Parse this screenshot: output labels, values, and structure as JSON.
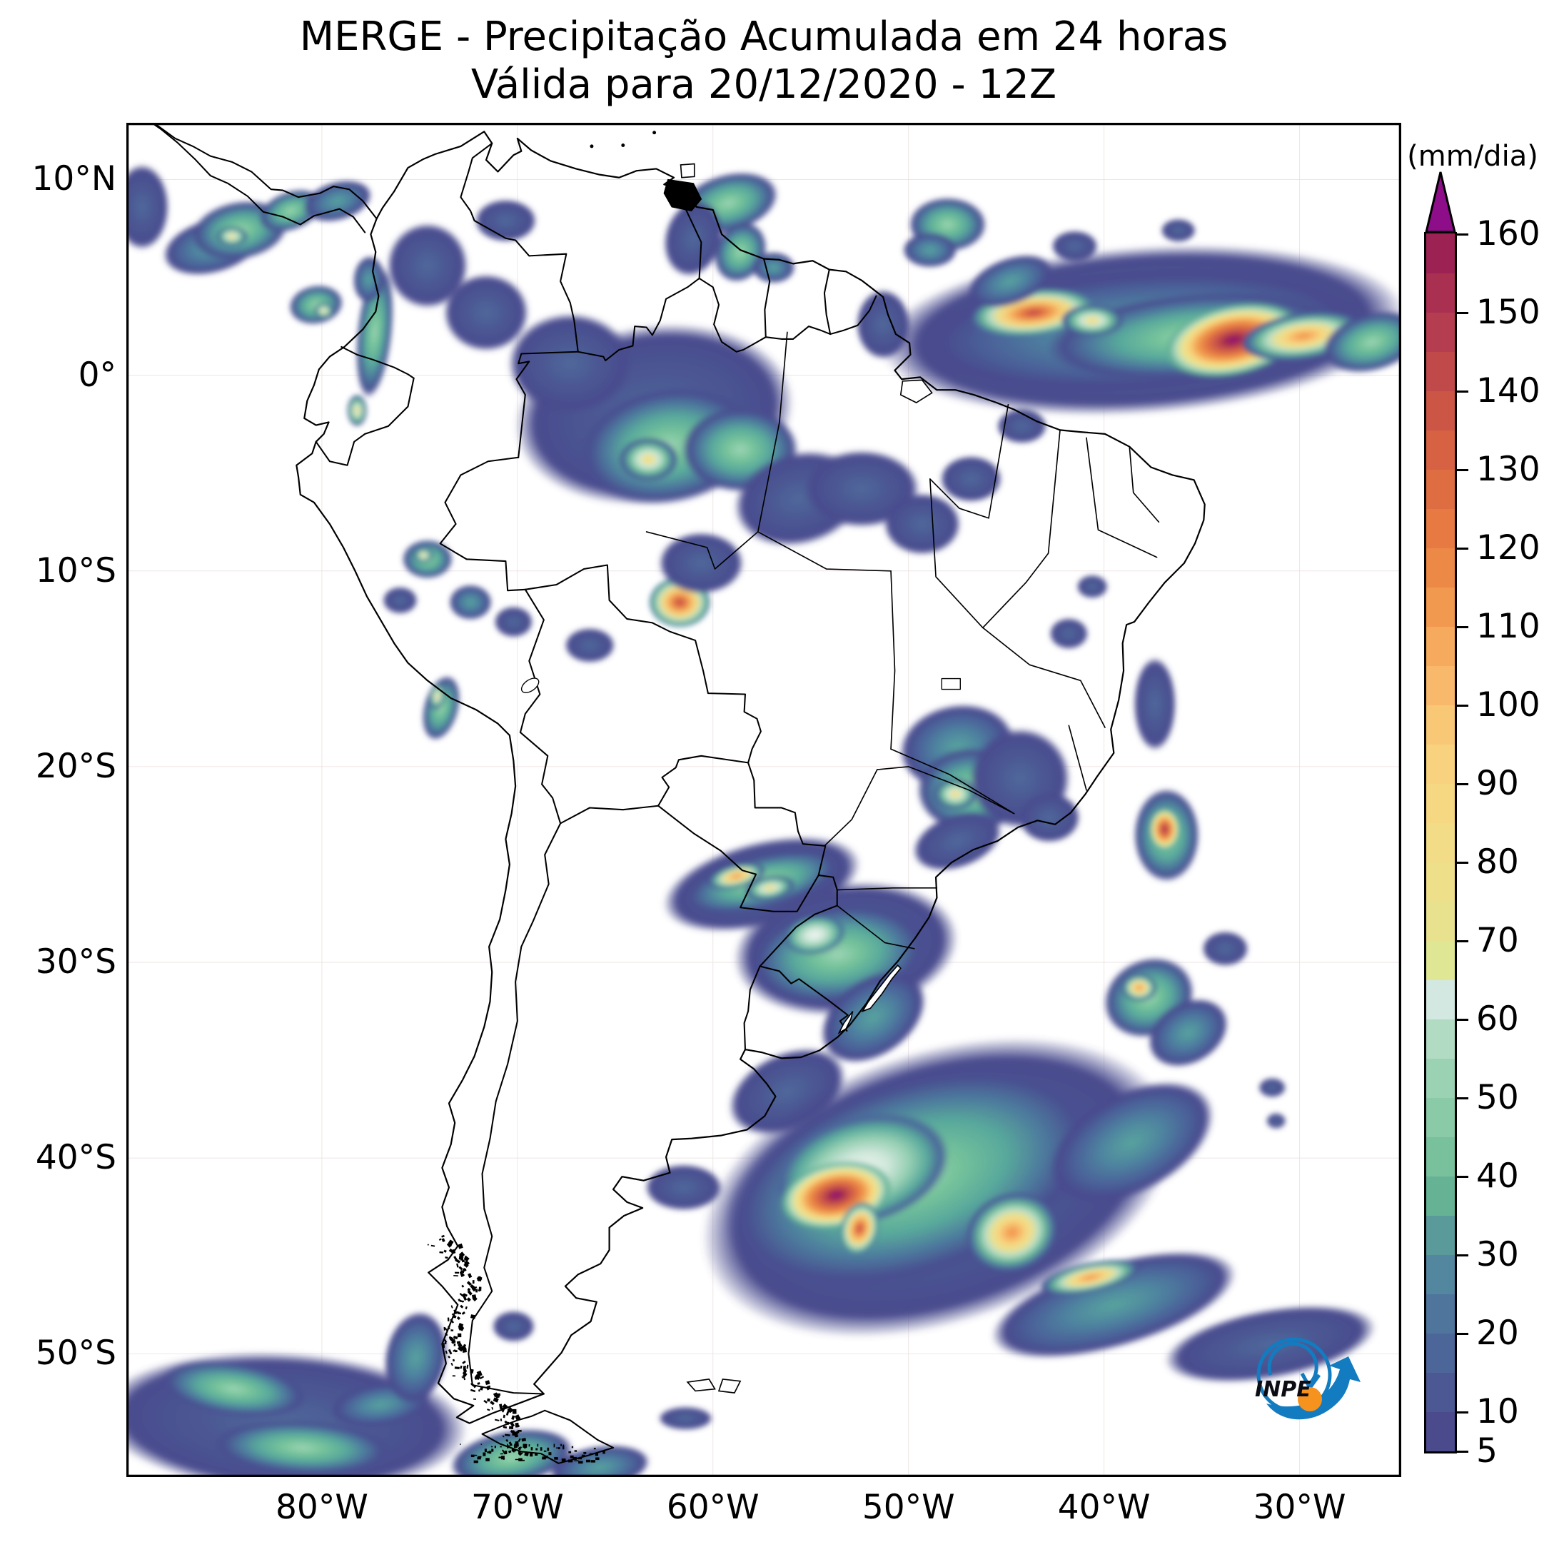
{
  "title": {
    "line1": "MERGE - Precipitação Acumulada em 24 horas",
    "line2": "Válida para 20/12/2020 - 12Z"
  },
  "colorbar": {
    "unit_label": "(mm/dia)",
    "min": 5,
    "max": 160,
    "segment_step": 5,
    "tick_values": [
      160,
      150,
      140,
      130,
      120,
      110,
      100,
      90,
      80,
      70,
      60,
      50,
      40,
      30,
      20,
      10,
      5
    ],
    "over_arrow_color": "#8e0d88",
    "segment_colors": [
      "#4b4a8c",
      "#4c5893",
      "#4d6699",
      "#4f759d",
      "#53869f",
      "#5a9a9b",
      "#66b295",
      "#78c19c",
      "#8acaa7",
      "#9cd2b4",
      "#b2dbc4",
      "#d3e8e0",
      "#e0e794",
      "#e8e28e",
      "#eedf8a",
      "#f2dc87",
      "#f6d883",
      "#f8d27e",
      "#f9c877",
      "#f9b96c",
      "#f6aa5e",
      "#f29950",
      "#ed8947",
      "#e67a42",
      "#de6e41",
      "#d66243",
      "#cc5645",
      "#c04a4a",
      "#b43d4f",
      "#a93051",
      "#9c2253"
    ]
  },
  "axes": {
    "lat_ticks": [
      {
        "label": "10°N",
        "value": 10
      },
      {
        "label": "0°",
        "value": 0
      },
      {
        "label": "10°S",
        "value": -10
      },
      {
        "label": "20°S",
        "value": -20
      },
      {
        "label": "30°S",
        "value": -30
      },
      {
        "label": "40°S",
        "value": -40
      },
      {
        "label": "50°S",
        "value": -50
      }
    ],
    "lon_ticks": [
      {
        "label": "80°W",
        "value": -80
      },
      {
        "label": "70°W",
        "value": -70
      },
      {
        "label": "60°W",
        "value": -60
      },
      {
        "label": "50°W",
        "value": -50
      },
      {
        "label": "40°W",
        "value": -40
      },
      {
        "label": "30°W",
        "value": -30
      }
    ]
  },
  "chart_data": {
    "type": "heatmap",
    "title": "MERGE - Precipitação Acumulada em 24 horas",
    "subtitle": "Válida para 20/12/2020 - 12Z",
    "unit": "mm/dia",
    "scale_min": 5,
    "scale_max": 160,
    "extent": {
      "west": -90,
      "east": -24.8,
      "north": 12.9,
      "south": -56.3
    },
    "gridline_lons": [
      -80,
      -70,
      -60,
      -50,
      -40,
      -30
    ],
    "gridline_lats": [
      10,
      0,
      -10,
      -20,
      -30,
      -40,
      -50
    ],
    "features": [
      {
        "lon": -38.0,
        "lat": 2.3,
        "rx": 13.5,
        "ry": 4.3,
        "rot": -4,
        "peak_mm": 12
      },
      {
        "lon": -38.2,
        "lat": 2.3,
        "rx": 11.5,
        "ry": 3.1,
        "rot": -4,
        "peak_mm": 30
      },
      {
        "lon": -35.5,
        "lat": 2.0,
        "rx": 7.5,
        "ry": 2.2,
        "rot": -5,
        "peak_mm": 48
      },
      {
        "lon": -43.6,
        "lat": 3.2,
        "rx": 3.2,
        "ry": 1.2,
        "rot": -6,
        "peak_mm": 140
      },
      {
        "lon": -40.6,
        "lat": 2.8,
        "rx": 1.6,
        "ry": 0.8,
        "rot": 0,
        "peak_mm": 80
      },
      {
        "lon": -33.4,
        "lat": 1.8,
        "rx": 3.6,
        "ry": 1.8,
        "rot": -12,
        "peak_mm": 165
      },
      {
        "lon": -29.8,
        "lat": 2.0,
        "rx": 3.2,
        "ry": 1.2,
        "rot": -8,
        "peak_mm": 115
      },
      {
        "lon": -26.3,
        "lat": 1.7,
        "rx": 2.6,
        "ry": 1.5,
        "rot": -15,
        "peak_mm": 48
      },
      {
        "lon": -48.0,
        "lat": 7.7,
        "rx": 2.0,
        "ry": 1.4,
        "rot": 0,
        "peak_mm": 48
      },
      {
        "lon": -48.9,
        "lat": 6.4,
        "rx": 1.4,
        "ry": 0.9,
        "rot": 0,
        "peak_mm": 30
      },
      {
        "lon": -44.8,
        "lat": 4.8,
        "rx": 2.3,
        "ry": 1.2,
        "rot": -20,
        "peak_mm": 30
      },
      {
        "lon": -41.5,
        "lat": 6.6,
        "rx": 1.2,
        "ry": 0.8,
        "rot": 0,
        "peak_mm": 12
      },
      {
        "lon": -36.2,
        "lat": 7.4,
        "rx": 0.9,
        "ry": 0.6,
        "rot": 0,
        "peak_mm": 12
      },
      {
        "lon": -89.2,
        "lat": 8.6,
        "rx": 1.4,
        "ry": 2.2,
        "rot": 0,
        "peak_mm": 12
      },
      {
        "lon": -85.6,
        "lat": 6.6,
        "rx": 2.6,
        "ry": 1.4,
        "rot": -15,
        "peak_mm": 30
      },
      {
        "lon": -84.2,
        "lat": 7.4,
        "rx": 2.5,
        "ry": 1.5,
        "rot": -10,
        "peak_mm": 48
      },
      {
        "lon": -84.6,
        "lat": 7.1,
        "rx": 0.8,
        "ry": 0.5,
        "rot": 0,
        "peak_mm": 80
      },
      {
        "lon": -81.6,
        "lat": 8.4,
        "rx": 1.7,
        "ry": 1.0,
        "rot": -20,
        "peak_mm": 48
      },
      {
        "lon": -79.2,
        "lat": 8.9,
        "rx": 1.8,
        "ry": 1.0,
        "rot": -15,
        "peak_mm": 30
      },
      {
        "lon": -80.3,
        "lat": 3.6,
        "rx": 1.4,
        "ry": 1.0,
        "rot": -10,
        "peak_mm": 48
      },
      {
        "lon": -79.9,
        "lat": 3.3,
        "rx": 0.5,
        "ry": 0.4,
        "rot": 0,
        "peak_mm": 80
      },
      {
        "lon": -77.3,
        "lat": 2.2,
        "rx": 0.9,
        "ry": 3.4,
        "rot": 6,
        "peak_mm": 48
      },
      {
        "lon": -78.2,
        "lat": -1.8,
        "rx": 0.5,
        "ry": 0.8,
        "rot": 0,
        "peak_mm": 80
      },
      {
        "lon": -77.6,
        "lat": 4.9,
        "rx": 0.8,
        "ry": 1.2,
        "rot": 4,
        "peak_mm": 30
      },
      {
        "lon": -74.6,
        "lat": 5.6,
        "rx": 2.1,
        "ry": 2.2,
        "rot": 0,
        "peak_mm": 12
      },
      {
        "lon": -71.6,
        "lat": 3.2,
        "rx": 2.2,
        "ry": 2.0,
        "rot": 0,
        "peak_mm": 12
      },
      {
        "lon": -70.6,
        "lat": 7.9,
        "rx": 1.6,
        "ry": 1.1,
        "rot": 0,
        "peak_mm": 12
      },
      {
        "lon": -59.8,
        "lat": 9.4,
        "rx": 1.0,
        "ry": 0.55,
        "rot": -5,
        "peak_mm": 80
      },
      {
        "lon": -59.2,
        "lat": 8.8,
        "rx": 2.6,
        "ry": 1.5,
        "rot": -15,
        "peak_mm": 48
      },
      {
        "lon": -61.0,
        "lat": 7.0,
        "rx": 1.5,
        "ry": 2.0,
        "rot": 15,
        "peak_mm": 12
      },
      {
        "lon": -58.6,
        "lat": 6.3,
        "rx": 1.3,
        "ry": 1.6,
        "rot": 25,
        "peak_mm": 48
      },
      {
        "lon": -56.9,
        "lat": 5.5,
        "rx": 1.1,
        "ry": 0.8,
        "rot": 0,
        "peak_mm": 30
      },
      {
        "lon": -63.0,
        "lat": -2.0,
        "rx": 7.2,
        "ry": 4.6,
        "rot": -8,
        "peak_mm": 12
      },
      {
        "lon": -67.3,
        "lat": 0.6,
        "rx": 3.2,
        "ry": 2.6,
        "rot": 0,
        "peak_mm": 12
      },
      {
        "lon": -62.3,
        "lat": -3.6,
        "rx": 4.6,
        "ry": 3.0,
        "rot": -10,
        "peak_mm": 48
      },
      {
        "lon": -63.3,
        "lat": -4.3,
        "rx": 1.5,
        "ry": 1.1,
        "rot": 0,
        "peak_mm": 80
      },
      {
        "lon": -58.6,
        "lat": -3.8,
        "rx": 3.0,
        "ry": 2.2,
        "rot": 0,
        "peak_mm": 48
      },
      {
        "lon": -55.6,
        "lat": -6.3,
        "rx": 3.4,
        "ry": 2.4,
        "rot": -15,
        "peak_mm": 12
      },
      {
        "lon": -61.7,
        "lat": -11.6,
        "rx": 1.6,
        "ry": 1.3,
        "rot": 0,
        "peak_mm": 140
      },
      {
        "lon": -60.6,
        "lat": -9.6,
        "rx": 2.2,
        "ry": 1.6,
        "rot": 0,
        "peak_mm": 12
      },
      {
        "lon": -52.4,
        "lat": -5.8,
        "rx": 3.0,
        "ry": 2.0,
        "rot": 0,
        "peak_mm": 12
      },
      {
        "lon": -49.3,
        "lat": -7.6,
        "rx": 2.0,
        "ry": 1.6,
        "rot": 0,
        "peak_mm": 12
      },
      {
        "lon": -46.8,
        "lat": -5.3,
        "rx": 1.6,
        "ry": 1.2,
        "rot": 0,
        "peak_mm": 12
      },
      {
        "lon": -51.3,
        "lat": 2.6,
        "rx": 1.4,
        "ry": 1.8,
        "rot": 0,
        "peak_mm": 12
      },
      {
        "lon": -44.2,
        "lat": -2.6,
        "rx": 1.3,
        "ry": 0.9,
        "rot": 0,
        "peak_mm": 12
      },
      {
        "lon": -41.8,
        "lat": -13.2,
        "rx": 1.0,
        "ry": 0.8,
        "rot": 0,
        "peak_mm": 12
      },
      {
        "lon": -40.6,
        "lat": -10.8,
        "rx": 0.8,
        "ry": 0.6,
        "rot": 0,
        "peak_mm": 12
      },
      {
        "lon": -74.6,
        "lat": -9.4,
        "rx": 1.3,
        "ry": 1.0,
        "rot": 0,
        "peak_mm": 48
      },
      {
        "lon": -74.8,
        "lat": -9.2,
        "rx": 0.5,
        "ry": 0.4,
        "rot": 0,
        "peak_mm": 80
      },
      {
        "lon": -76.0,
        "lat": -11.5,
        "rx": 0.9,
        "ry": 0.7,
        "rot": 0,
        "peak_mm": 12
      },
      {
        "lon": -72.4,
        "lat": -11.6,
        "rx": 1.1,
        "ry": 0.9,
        "rot": 0,
        "peak_mm": 30
      },
      {
        "lon": -70.2,
        "lat": -12.6,
        "rx": 1.0,
        "ry": 0.8,
        "rot": 0,
        "peak_mm": 12
      },
      {
        "lon": -66.3,
        "lat": -13.8,
        "rx": 1.3,
        "ry": 0.9,
        "rot": 0,
        "peak_mm": 12
      },
      {
        "lon": -73.9,
        "lat": -17.0,
        "rx": 0.9,
        "ry": 1.7,
        "rot": 15,
        "peak_mm": 48
      },
      {
        "lon": -74.1,
        "lat": -16.4,
        "rx": 0.4,
        "ry": 0.7,
        "rot": 10,
        "peak_mm": 80
      },
      {
        "lon": -47.5,
        "lat": -19.0,
        "rx": 3.0,
        "ry": 2.2,
        "rot": -10,
        "peak_mm": 30
      },
      {
        "lon": -46.8,
        "lat": -21.2,
        "rx": 2.8,
        "ry": 2.2,
        "rot": 0,
        "peak_mm": 48
      },
      {
        "lon": -47.6,
        "lat": -21.4,
        "rx": 1.1,
        "ry": 0.8,
        "rot": 0,
        "peak_mm": 80
      },
      {
        "lon": -44.3,
        "lat": -20.6,
        "rx": 2.6,
        "ry": 2.6,
        "rot": 0,
        "peak_mm": 12
      },
      {
        "lon": -47.5,
        "lat": -23.8,
        "rx": 2.4,
        "ry": 1.4,
        "rot": -20,
        "peak_mm": 12
      },
      {
        "lon": -42.8,
        "lat": -22.6,
        "rx": 1.6,
        "ry": 1.3,
        "rot": 0,
        "peak_mm": 12
      },
      {
        "lon": -37.4,
        "lat": -16.8,
        "rx": 1.1,
        "ry": 2.4,
        "rot": 0,
        "peak_mm": 12
      },
      {
        "lon": -36.8,
        "lat": -23.5,
        "rx": 1.7,
        "ry": 2.4,
        "rot": 0,
        "peak_mm": 48
      },
      {
        "lon": -36.9,
        "lat": -23.2,
        "rx": 0.8,
        "ry": 1.1,
        "rot": 0,
        "peak_mm": 155
      },
      {
        "lon": -37.7,
        "lat": -31.8,
        "rx": 2.4,
        "ry": 2.0,
        "rot": -25,
        "peak_mm": 48
      },
      {
        "lon": -38.2,
        "lat": -31.3,
        "rx": 0.9,
        "ry": 0.7,
        "rot": 0,
        "peak_mm": 115
      },
      {
        "lon": -35.7,
        "lat": -33.6,
        "rx": 2.2,
        "ry": 1.6,
        "rot": -30,
        "peak_mm": 30
      },
      {
        "lon": -33.8,
        "lat": -29.3,
        "rx": 1.2,
        "ry": 0.9,
        "rot": 0,
        "peak_mm": 12
      },
      {
        "lon": -31.4,
        "lat": -36.4,
        "rx": 0.7,
        "ry": 0.5,
        "rot": 0,
        "peak_mm": 12
      },
      {
        "lon": -31.2,
        "lat": -38.1,
        "rx": 0.5,
        "ry": 0.4,
        "rot": 0,
        "peak_mm": 12
      },
      {
        "lon": -57.5,
        "lat": -26.0,
        "rx": 5.2,
        "ry": 2.2,
        "rot": -14,
        "peak_mm": 12
      },
      {
        "lon": -57.5,
        "lat": -25.9,
        "rx": 4.2,
        "ry": 1.4,
        "rot": -14,
        "peak_mm": 48
      },
      {
        "lon": -58.8,
        "lat": -25.6,
        "rx": 1.5,
        "ry": 0.6,
        "rot": -14,
        "peak_mm": 115
      },
      {
        "lon": -57.1,
        "lat": -26.2,
        "rx": 1.3,
        "ry": 0.6,
        "rot": -10,
        "peak_mm": 80
      },
      {
        "lon": -53.2,
        "lat": -29.3,
        "rx": 5.8,
        "ry": 3.4,
        "rot": -8,
        "peak_mm": 12
      },
      {
        "lon": -53.6,
        "lat": -29.6,
        "rx": 4.6,
        "ry": 2.6,
        "rot": -8,
        "peak_mm": 48
      },
      {
        "lon": -54.8,
        "lat": -28.6,
        "rx": 1.6,
        "ry": 1.0,
        "rot": -10,
        "peak_mm": 62
      },
      {
        "lon": -51.8,
        "lat": -32.8,
        "rx": 3.0,
        "ry": 2.0,
        "rot": -35,
        "peak_mm": 30
      },
      {
        "lon": -56.2,
        "lat": -36.6,
        "rx": 3.2,
        "ry": 2.0,
        "rot": -25,
        "peak_mm": 12
      },
      {
        "lon": -48.5,
        "lat": -41.5,
        "rx": 12.5,
        "ry": 7.0,
        "rot": -18,
        "peak_mm": 12
      },
      {
        "lon": -49.8,
        "lat": -41.0,
        "rx": 10.0,
        "ry": 5.2,
        "rot": -18,
        "peak_mm": 48
      },
      {
        "lon": -52.4,
        "lat": -40.6,
        "rx": 4.6,
        "ry": 2.8,
        "rot": -15,
        "peak_mm": 62
      },
      {
        "lon": -53.7,
        "lat": -41.9,
        "rx": 2.9,
        "ry": 1.7,
        "rot": -12,
        "peak_mm": 165
      },
      {
        "lon": -52.5,
        "lat": -43.6,
        "rx": 1.0,
        "ry": 1.4,
        "rot": 15,
        "peak_mm": 140
      },
      {
        "lon": -44.7,
        "lat": -43.8,
        "rx": 2.4,
        "ry": 2.0,
        "rot": -20,
        "peak_mm": 115
      },
      {
        "lon": -38.6,
        "lat": -39.2,
        "rx": 4.6,
        "ry": 2.6,
        "rot": -28,
        "peak_mm": 30
      },
      {
        "lon": -39.5,
        "lat": -47.5,
        "rx": 6.5,
        "ry": 2.2,
        "rot": -16,
        "peak_mm": 30
      },
      {
        "lon": -40.7,
        "lat": -46.1,
        "rx": 2.6,
        "ry": 0.75,
        "rot": -12,
        "peak_mm": 115
      },
      {
        "lon": -31.5,
        "lat": -49.5,
        "rx": 5.5,
        "ry": 1.8,
        "rot": -10,
        "peak_mm": 12
      },
      {
        "lon": -61.5,
        "lat": -41.5,
        "rx": 2.0,
        "ry": 1.2,
        "rot": 0,
        "peak_mm": 12
      },
      {
        "lon": -61.4,
        "lat": -53.3,
        "rx": 1.4,
        "ry": 0.6,
        "rot": 0,
        "peak_mm": 12
      },
      {
        "lon": -82.0,
        "lat": -53.5,
        "rx": 9.5,
        "ry": 3.6,
        "rot": 3,
        "peak_mm": 12
      },
      {
        "lon": -84.5,
        "lat": -51.8,
        "rx": 3.8,
        "ry": 1.4,
        "rot": 8,
        "peak_mm": 48
      },
      {
        "lon": -81.0,
        "lat": -54.8,
        "rx": 4.6,
        "ry": 1.4,
        "rot": 3,
        "peak_mm": 48
      },
      {
        "lon": -77.0,
        "lat": -52.6,
        "rx": 2.6,
        "ry": 1.1,
        "rot": -8,
        "peak_mm": 30
      },
      {
        "lon": -75.2,
        "lat": -50.2,
        "rx": 1.6,
        "ry": 2.4,
        "rot": 10,
        "peak_mm": 30
      },
      {
        "lon": -70.3,
        "lat": -55.3,
        "rx": 3.2,
        "ry": 1.4,
        "rot": -10,
        "peak_mm": 48
      },
      {
        "lon": -65.8,
        "lat": -55.8,
        "rx": 2.6,
        "ry": 1.1,
        "rot": -8,
        "peak_mm": 30
      },
      {
        "lon": -70.2,
        "lat": -48.6,
        "rx": 1.1,
        "ry": 0.8,
        "rot": 0,
        "peak_mm": 12
      }
    ]
  },
  "logo": {
    "label": "INPE",
    "blue": "#137bc0",
    "orange": "#f6921e"
  }
}
